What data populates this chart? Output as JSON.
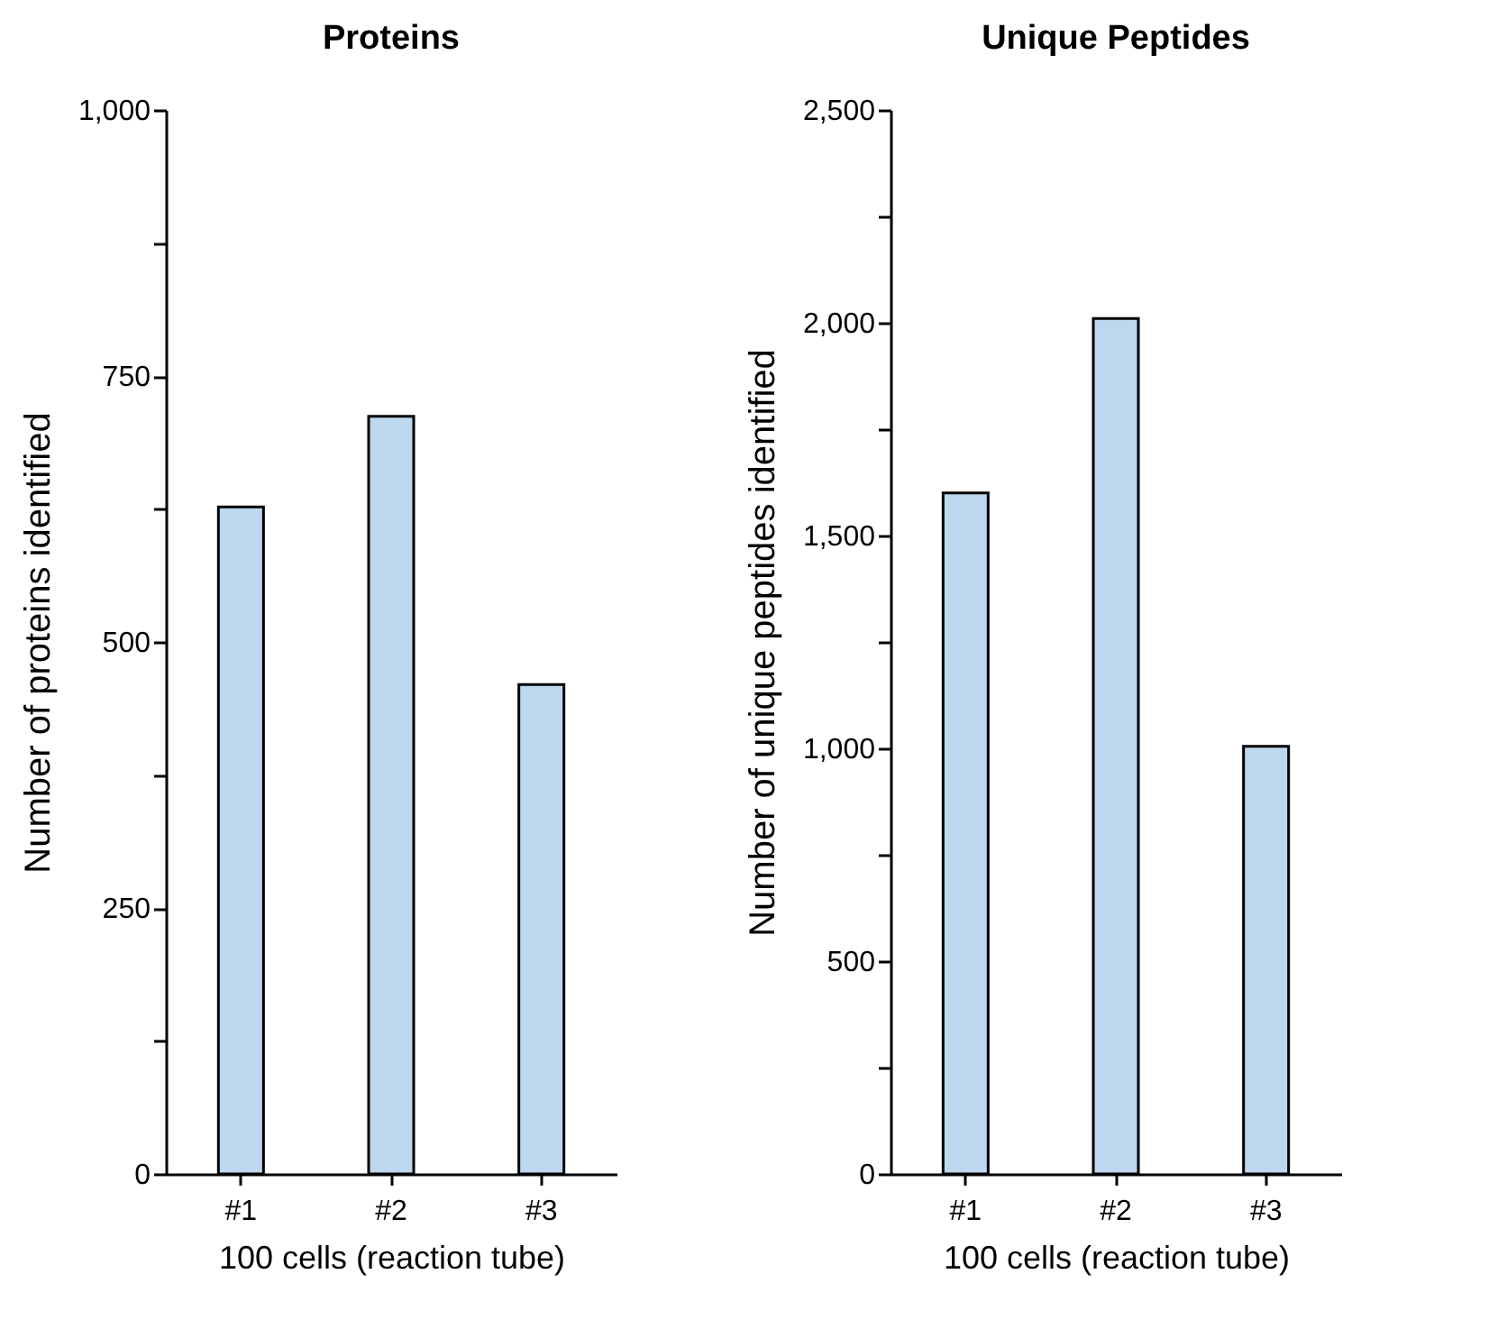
{
  "chart_data": [
    {
      "type": "bar",
      "title": "Proteins",
      "xlabel": "100 cells (reaction tube)",
      "ylabel": "Number  of proteins identified",
      "categories": [
        "#1",
        "#2",
        "#3"
      ],
      "values": [
        627,
        712,
        460
      ],
      "color": "#bdd7ee",
      "ylim": [
        0,
        1000
      ],
      "yticks": [
        0,
        {
          "value": 125,
          "label": null
        },
        250,
        {
          "value": 375,
          "label": null
        },
        500,
        {
          "value": 625,
          "label": null
        },
        750,
        {
          "value": 875,
          "label": null
        },
        {
          "value": 1000,
          "label": "1,000"
        }
      ],
      "grid": false
    },
    {
      "type": "bar",
      "title": "Unique Peptides",
      "xlabel": "100 cells (reaction tube)",
      "ylabel": "Number  of unique peptides identified",
      "categories": [
        "#1",
        "#2",
        "#3"
      ],
      "values": [
        1600,
        2010,
        1005
      ],
      "color": "#bdd7ee",
      "ylim": [
        0,
        2500
      ],
      "yticks": [
        0,
        {
          "value": 250,
          "label": null
        },
        500,
        {
          "value": 750,
          "label": null
        },
        {
          "value": 1000,
          "label": "1,000"
        },
        {
          "value": 1250,
          "label": null
        },
        {
          "value": 1500,
          "label": "1,500"
        },
        {
          "value": 1750,
          "label": null
        },
        {
          "value": 2000,
          "label": "2,000"
        },
        {
          "value": 2250,
          "label": null
        },
        {
          "value": 2500,
          "label": "2,500"
        }
      ],
      "grid": false
    }
  ]
}
